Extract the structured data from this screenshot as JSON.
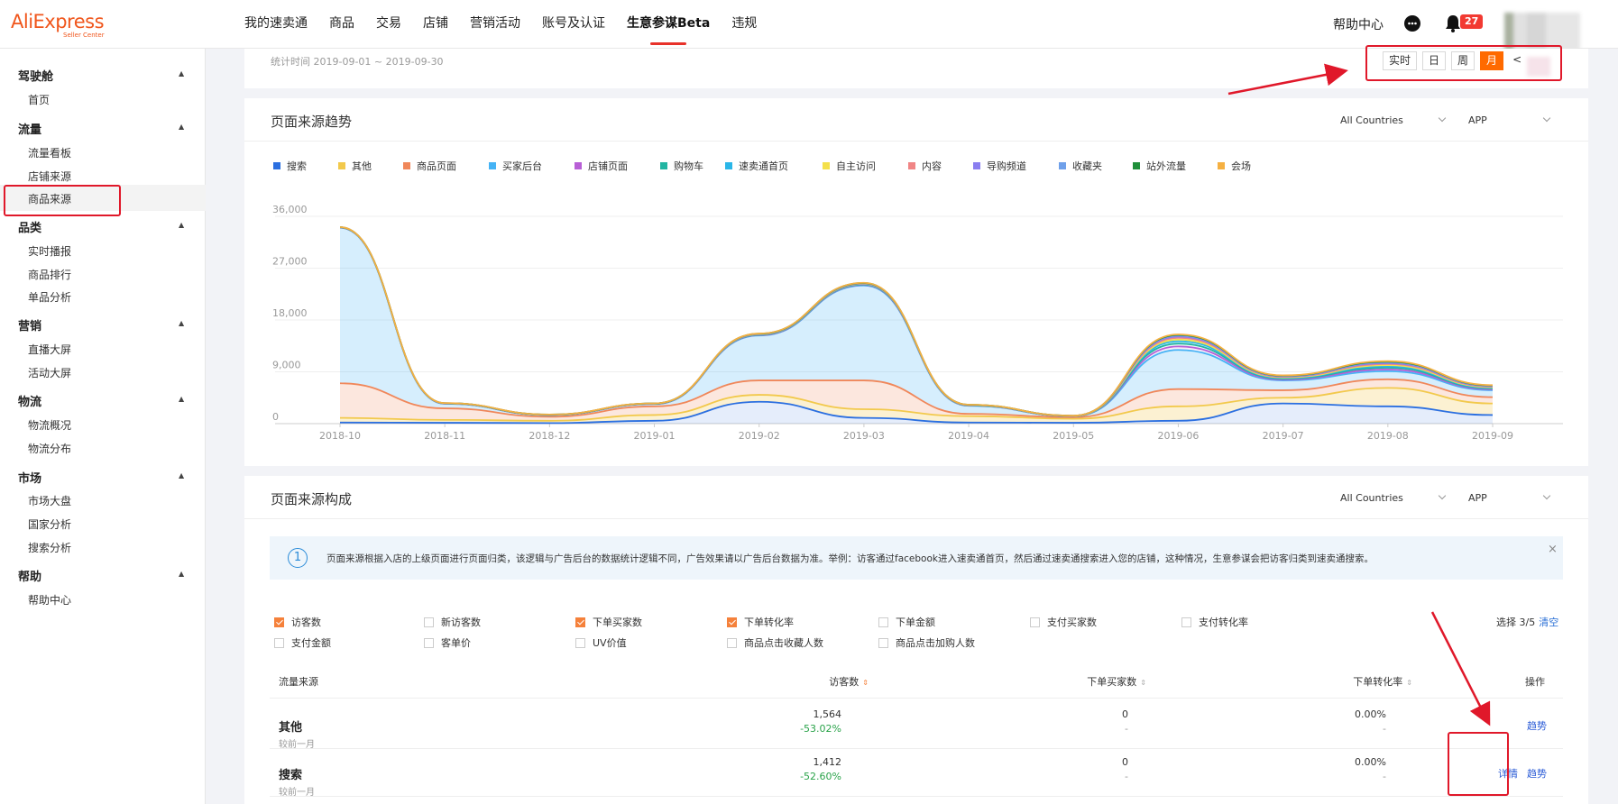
{
  "header": {
    "logo_main": "AliExpress",
    "logo_sub": "Seller Center",
    "nav": [
      "我的速卖通",
      "商品",
      "交易",
      "店铺",
      "营销活动",
      "账号及认证",
      "生意参谋Beta",
      "违规"
    ],
    "active_nav_index": 6,
    "help_center": "帮助中心",
    "notification_count": "27",
    "icons": {
      "message": "chat-bubble-icon",
      "notification": "bell-icon"
    }
  },
  "sidebar": {
    "groups": [
      {
        "label": "驾驶舱",
        "items": [
          "首页"
        ]
      },
      {
        "label": "流量",
        "items": [
          "流量看板",
          "店铺来源",
          "商品来源"
        ]
      },
      {
        "label": "品类",
        "items": [
          "实时播报",
          "商品排行",
          "单品分析"
        ]
      },
      {
        "label": "营销",
        "items": [
          "直播大屏",
          "活动大屏"
        ]
      },
      {
        "label": "物流",
        "items": [
          "物流概况",
          "物流分布"
        ]
      },
      {
        "label": "市场",
        "items": [
          "市场大盘",
          "国家分析",
          "搜索分析"
        ]
      },
      {
        "label": "帮助",
        "items": [
          "帮助中心"
        ]
      }
    ],
    "active_item": "店铺来源"
  },
  "top": {
    "stat_time": "统计时间 2019-09-01 ~ 2019-09-30",
    "time_buttons": [
      "实时",
      "日",
      "周",
      "月"
    ],
    "active_time_button": "月",
    "prev_arrow": "<"
  },
  "trend": {
    "title": "页面来源趋势",
    "country_select": "All Countries",
    "platform_select": "APP"
  },
  "chart_data": {
    "type": "area",
    "title": "页面来源趋势",
    "categories": [
      "2018-10",
      "2018-11",
      "2018-12",
      "2019-01",
      "2019-02",
      "2019-03",
      "2019-04",
      "2019-05",
      "2019-06",
      "2019-07",
      "2019-08",
      "2019-09"
    ],
    "y_ticks": [
      "0",
      "9,000",
      "18,000",
      "27,000",
      "36,000"
    ],
    "ylim": [
      0,
      36000
    ],
    "stacked": true,
    "legend_position": "top-left",
    "grid": true,
    "series": [
      {
        "name": "搜索",
        "color": "#2b6fe0",
        "values": [
          200,
          150,
          100,
          500,
          3800,
          1000,
          200,
          150,
          500,
          3500,
          3000,
          1500
        ]
      },
      {
        "name": "其他",
        "color": "#f2c94c",
        "values": [
          800,
          500,
          400,
          1000,
          1200,
          1500,
          1100,
          700,
          2500,
          1000,
          3200,
          2000
        ]
      },
      {
        "name": "商品页面",
        "color": "#f0875a",
        "values": [
          6000,
          2000,
          700,
          1500,
          2500,
          5000,
          400,
          250,
          3000,
          1300,
          1500,
          1100
        ]
      },
      {
        "name": "买家后台",
        "color": "#45b3f5",
        "values": [
          27000,
          800,
          300,
          400,
          7800,
          16500,
          1400,
          200,
          6800,
          1700,
          1400,
          1200
        ]
      },
      {
        "name": "店铺页面",
        "color": "#b85fd6",
        "values": [
          20,
          20,
          10,
          20,
          60,
          80,
          30,
          10,
          600,
          150,
          300,
          150
        ]
      },
      {
        "name": "购物车",
        "color": "#22b5a2",
        "values": [
          20,
          20,
          10,
          20,
          60,
          80,
          30,
          10,
          500,
          150,
          300,
          150
        ]
      },
      {
        "name": "速卖通首页",
        "color": "#2ab6e8",
        "values": [
          20,
          20,
          10,
          20,
          60,
          80,
          30,
          10,
          400,
          120,
          250,
          120
        ]
      },
      {
        "name": "自主访问",
        "color": "#f4e04a",
        "values": [
          10,
          10,
          10,
          10,
          30,
          40,
          20,
          10,
          300,
          100,
          200,
          100
        ]
      },
      {
        "name": "内容",
        "color": "#f08585",
        "values": [
          10,
          10,
          10,
          10,
          30,
          40,
          20,
          10,
          300,
          100,
          200,
          100
        ]
      },
      {
        "name": "导购频道",
        "color": "#8a7ef0",
        "values": [
          10,
          10,
          10,
          10,
          30,
          40,
          20,
          10,
          200,
          80,
          150,
          80
        ]
      },
      {
        "name": "收藏夹",
        "color": "#6fa0ea",
        "values": [
          10,
          10,
          10,
          10,
          30,
          40,
          20,
          10,
          200,
          80,
          150,
          80
        ]
      },
      {
        "name": "站外流量",
        "color": "#1f8f3a",
        "values": [
          10,
          10,
          10,
          10,
          20,
          30,
          10,
          5,
          100,
          50,
          100,
          50
        ]
      },
      {
        "name": "会场",
        "color": "#f5b042",
        "values": [
          10,
          10,
          10,
          10,
          20,
          30,
          10,
          5,
          100,
          50,
          100,
          50
        ]
      }
    ]
  },
  "compose": {
    "title": "页面来源构成",
    "country_select": "All Countries",
    "platform_select": "APP",
    "info_text": "页面来源根据入店的上级页面进行页面归类，该逻辑与广告后台的数据统计逻辑不同，广告效果请以广告后台数据为准。举例：访客通过facebook进入速卖通首页，然后通过速卖通搜索进入您的店铺，这种情况，生意参谋会把访客归类到速卖通搜索。",
    "info_icon": "1",
    "close_icon": "×",
    "checkboxes": [
      {
        "label": "访客数",
        "checked": true
      },
      {
        "label": "新访客数",
        "checked": false
      },
      {
        "label": "下单买家数",
        "checked": true
      },
      {
        "label": "下单转化率",
        "checked": true
      },
      {
        "label": "下单金额",
        "checked": false
      },
      {
        "label": "支付买家数",
        "checked": false
      },
      {
        "label": "支付转化率",
        "checked": false
      },
      {
        "label": "支付金额",
        "checked": false
      },
      {
        "label": "客单价",
        "checked": false
      },
      {
        "label": "UV价值",
        "checked": false
      },
      {
        "label": "商品点击收藏人数",
        "checked": false
      },
      {
        "label": "商品点击加购人数",
        "checked": false
      }
    ],
    "select_count": "选择 3/5",
    "clear": "清空",
    "columns": [
      "流量来源",
      "访客数",
      "下单买家数",
      "下单转化率",
      "操作"
    ],
    "rows": [
      {
        "name": "其他",
        "sub": "较前一月",
        "visitors": "1,564",
        "visitors_change": "-53.02%",
        "buyers": "0",
        "buyers_change": "-",
        "rate": "0.00%",
        "rate_change": "-",
        "actions": [
          "趋势"
        ]
      },
      {
        "name": "搜索",
        "sub": "较前一月",
        "visitors": "1,412",
        "visitors_change": "-52.60%",
        "buyers": "0",
        "buyers_change": "-",
        "rate": "0.00%",
        "rate_change": "-",
        "actions": [
          "详情",
          "趋势"
        ]
      }
    ]
  },
  "colors": {
    "accent": "#ff6a00",
    "annotation": "#e0182a",
    "link": "#2a5bd6",
    "positive": "#2aa34a"
  }
}
